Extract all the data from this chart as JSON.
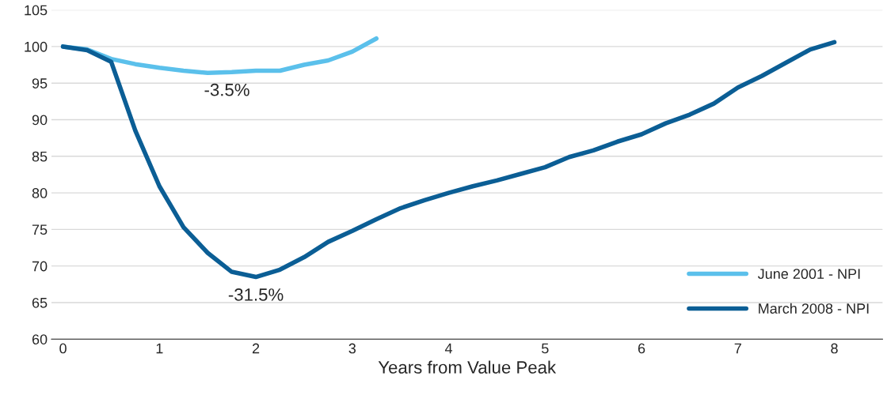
{
  "chart_data": {
    "type": "line",
    "xlabel": "Years from Value Peak",
    "xlim": [
      -0.12,
      8.5
    ],
    "xticks": [
      0,
      1,
      2,
      3,
      4,
      5,
      6,
      7,
      8
    ],
    "ylim": [
      60,
      105
    ],
    "yticks": [
      60,
      65,
      70,
      75,
      80,
      85,
      90,
      95,
      100,
      105
    ],
    "grid": "y",
    "legend": "bottom right",
    "marker": "none",
    "line_style": "solid",
    "series": [
      {
        "name": "June 2001 - NPI",
        "color": "#5bc0eb",
        "x": [
          0,
          0.25,
          0.5,
          0.75,
          1,
          1.25,
          1.5,
          1.75,
          2,
          2.25,
          2.5,
          2.75,
          3,
          3.25
        ],
        "values": [
          100,
          99.6,
          98.3,
          97.6,
          97.1,
          96.7,
          96.4,
          96.5,
          96.7,
          96.7,
          97.5,
          98.1,
          99.3,
          101.1
        ]
      },
      {
        "name": "March 2008 - NPI",
        "color": "#0b5e95",
        "x": [
          0,
          0.25,
          0.5,
          0.75,
          1,
          1.25,
          1.5,
          1.75,
          2,
          2.25,
          2.5,
          2.75,
          3,
          3.25,
          3.5,
          3.75,
          4,
          4.25,
          4.5,
          4.75,
          5,
          5.25,
          5.5,
          5.75,
          6,
          6.25,
          6.5,
          6.75,
          7,
          7.25,
          7.5,
          7.75,
          8
        ],
        "values": [
          100,
          99.5,
          97.9,
          88.5,
          80.9,
          75.3,
          71.8,
          69.2,
          68.5,
          69.5,
          71.2,
          73.3,
          74.8,
          76.4,
          77.9,
          79.0,
          80.0,
          80.9,
          81.7,
          82.6,
          83.5,
          84.9,
          85.8,
          87.0,
          88.0,
          89.5,
          90.7,
          92.2,
          94.4,
          96.0,
          97.8,
          99.6,
          100.6
        ]
      }
    ],
    "annotations": [
      {
        "text": "-3.5%",
        "x": 1.7,
        "y": 96.5
      },
      {
        "text": "-31.5%",
        "x": 2,
        "y": 68.5
      }
    ]
  }
}
